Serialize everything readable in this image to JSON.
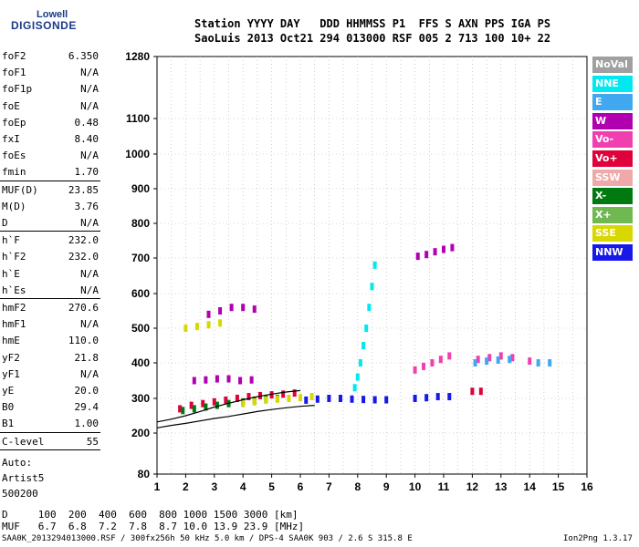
{
  "logo": {
    "line1": "Lowell",
    "line2": "DIGISONDE"
  },
  "header": {
    "line1": "Station YYYY DAY   DDD HHMMSS P1  FFS S AXN PPS IGA PS",
    "line2": "SaoLuis 2013 Oct21 294 013000 RSF 005 2 713 100 10+ 22"
  },
  "params": [
    {
      "name": "foF2",
      "value": "6.350"
    },
    {
      "name": "foF1",
      "value": "N/A"
    },
    {
      "name": "foF1p",
      "value": "N/A"
    },
    {
      "name": "foE",
      "value": "N/A"
    },
    {
      "name": "foEp",
      "value": "0.48"
    },
    {
      "name": "fxI",
      "value": "8.40"
    },
    {
      "name": "foEs",
      "value": "N/A"
    },
    {
      "name": "fmin",
      "value": "1.70"
    },
    {
      "name": "MUF(D)",
      "value": "23.85"
    },
    {
      "name": "M(D)",
      "value": "3.76"
    },
    {
      "name": "D",
      "value": "N/A"
    },
    {
      "name": "h`F",
      "value": "232.0"
    },
    {
      "name": "h`F2",
      "value": "232.0"
    },
    {
      "name": "h`E",
      "value": "N/A"
    },
    {
      "name": "h`Es",
      "value": "N/A"
    },
    {
      "name": "hmF2",
      "value": "270.6"
    },
    {
      "name": "hmF1",
      "value": "N/A"
    },
    {
      "name": "hmE",
      "value": "110.0"
    },
    {
      "name": "yF2",
      "value": "21.8"
    },
    {
      "name": "yF1",
      "value": "N/A"
    },
    {
      "name": "yE",
      "value": "20.0"
    },
    {
      "name": "B0",
      "value": "29.4"
    },
    {
      "name": "B1",
      "value": "1.00"
    },
    {
      "name": "C-level",
      "value": "55"
    }
  ],
  "scaling": {
    "auto_label": "Auto:",
    "artist": "Artist5",
    "version": "500200"
  },
  "footer": {
    "d_row": "D     100  200  400  600  800 1000 1500 3000 [km]",
    "muf_row": "MUF   6.7  6.8  7.2  7.8  8.7 10.0 13.9 23.9 [MHz]",
    "bottom_left": "SAA0K_2013294013000.RSF / 300fx256h 50 kHz 5.0 km / DPS-4 SAA0K 903 / 2.6 S 315.8 E",
    "bottom_right": "Ion2Png 1.3.17"
  },
  "legend": [
    {
      "label": "NoVal",
      "color": "#a0a0a0"
    },
    {
      "label": "NNE",
      "color": "#00e8f0"
    },
    {
      "label": "E",
      "color": "#40a8f0"
    },
    {
      "label": "W",
      "color": "#b000b0"
    },
    {
      "label": "Vo-",
      "color": "#f040b0"
    },
    {
      "label": "Vo+",
      "color": "#e0003a"
    },
    {
      "label": "SSW",
      "color": "#f0a8a8"
    },
    {
      "label": "X-",
      "color": "#007a10"
    },
    {
      "label": "X+",
      "color": "#70b850"
    },
    {
      "label": "SSE",
      "color": "#d8d800"
    },
    {
      "label": "NNW",
      "color": "#1818e8"
    }
  ],
  "chart_data": {
    "type": "scatter",
    "x_ticks": [
      "1",
      "2",
      "3",
      "4",
      "5",
      "6",
      "7",
      "8",
      "9",
      "10",
      "11",
      "12",
      "13",
      "14",
      "15",
      "16"
    ],
    "y_ticks": [
      "80",
      "200",
      "300",
      "400",
      "500",
      "600",
      "700",
      "800",
      "900",
      "1000",
      "1100",
      "1280"
    ],
    "xlim": [
      1,
      16
    ],
    "ylim": [
      80,
      1280
    ],
    "y_scale": "reciprocal-like",
    "grid": true,
    "legend_position": "right",
    "traces": [
      {
        "color": "#e0003a",
        "points": [
          [
            1.8,
            270
          ],
          [
            2.2,
            280
          ],
          [
            2.6,
            285
          ],
          [
            3.0,
            290
          ],
          [
            3.4,
            295
          ],
          [
            3.8,
            300
          ],
          [
            4.2,
            305
          ],
          [
            4.6,
            308
          ],
          [
            5.0,
            310
          ],
          [
            5.4,
            312
          ],
          [
            5.8,
            315
          ]
        ]
      },
      {
        "color": "#007a10",
        "points": [
          [
            1.9,
            265
          ],
          [
            2.3,
            270
          ],
          [
            2.7,
            275
          ],
          [
            3.1,
            280
          ],
          [
            3.5,
            285
          ],
          [
            4.0,
            290
          ],
          [
            4.4,
            295
          ],
          [
            4.8,
            298
          ],
          [
            5.2,
            300
          ]
        ]
      },
      {
        "color": "#d8d800",
        "points": [
          [
            4.0,
            285
          ],
          [
            4.4,
            290
          ],
          [
            4.8,
            295
          ],
          [
            5.2,
            298
          ],
          [
            5.6,
            300
          ],
          [
            6.0,
            302
          ],
          [
            6.4,
            305
          ]
        ]
      },
      {
        "color": "#1818e8",
        "points": [
          [
            6.2,
            295
          ],
          [
            6.6,
            298
          ],
          [
            7.0,
            300
          ],
          [
            7.4,
            300
          ],
          [
            7.8,
            298
          ],
          [
            8.2,
            297
          ],
          [
            8.6,
            296
          ],
          [
            9.0,
            296
          ],
          [
            10.0,
            300
          ],
          [
            10.4,
            302
          ],
          [
            10.8,
            305
          ],
          [
            11.2,
            305
          ]
        ]
      },
      {
        "color": "#b000b0",
        "points": [
          [
            2.8,
            540
          ],
          [
            3.2,
            550
          ],
          [
            3.6,
            560
          ],
          [
            4.0,
            560
          ],
          [
            4.4,
            555
          ],
          [
            2.3,
            350
          ],
          [
            2.7,
            352
          ],
          [
            3.1,
            355
          ],
          [
            3.5,
            355
          ],
          [
            3.9,
            350
          ],
          [
            4.3,
            352
          ]
        ]
      },
      {
        "color": "#b000b0",
        "points": [
          [
            10.1,
            705
          ],
          [
            10.4,
            710
          ],
          [
            10.7,
            718
          ],
          [
            11.0,
            725
          ],
          [
            11.3,
            730
          ]
        ]
      },
      {
        "color": "#d8d800",
        "points": [
          [
            2.0,
            500
          ],
          [
            2.4,
            505
          ],
          [
            2.8,
            510
          ],
          [
            3.2,
            515
          ]
        ]
      },
      {
        "color": "#f040b0",
        "points": [
          [
            10.0,
            380
          ],
          [
            10.3,
            390
          ],
          [
            10.6,
            400
          ],
          [
            10.9,
            410
          ],
          [
            11.2,
            420
          ],
          [
            12.2,
            410
          ],
          [
            12.6,
            415
          ],
          [
            13.0,
            420
          ],
          [
            13.4,
            415
          ],
          [
            14.0,
            405
          ]
        ]
      },
      {
        "color": "#40a8f0",
        "points": [
          [
            12.1,
            400
          ],
          [
            12.5,
            405
          ],
          [
            12.9,
            408
          ],
          [
            13.3,
            410
          ],
          [
            14.3,
            400
          ],
          [
            14.7,
            400
          ]
        ]
      },
      {
        "color": "#00e8f0",
        "points": [
          [
            7.9,
            330
          ],
          [
            8.0,
            360
          ],
          [
            8.1,
            400
          ],
          [
            8.2,
            450
          ],
          [
            8.3,
            500
          ],
          [
            8.4,
            560
          ],
          [
            8.5,
            620
          ],
          [
            8.6,
            680
          ]
        ]
      },
      {
        "color": "#e0003a",
        "points": [
          [
            12.0,
            320
          ],
          [
            12.3,
            320
          ]
        ]
      }
    ],
    "model_curves": [
      {
        "points": [
          [
            1.0,
            215
          ],
          [
            1.5,
            222
          ],
          [
            2.0,
            228
          ],
          [
            2.5,
            235
          ],
          [
            3.0,
            242
          ],
          [
            3.5,
            248
          ],
          [
            4.0,
            255
          ],
          [
            4.5,
            262
          ],
          [
            5.0,
            268
          ],
          [
            5.5,
            273
          ],
          [
            6.0,
            277
          ],
          [
            6.5,
            280
          ]
        ]
      },
      {
        "points": [
          [
            1.0,
            232
          ],
          [
            1.5,
            240
          ],
          [
            2.0,
            250
          ],
          [
            2.5,
            262
          ],
          [
            3.0,
            275
          ],
          [
            3.5,
            286
          ],
          [
            4.0,
            296
          ],
          [
            4.5,
            305
          ],
          [
            5.0,
            312
          ],
          [
            5.5,
            318
          ],
          [
            6.0,
            322
          ]
        ]
      }
    ]
  }
}
